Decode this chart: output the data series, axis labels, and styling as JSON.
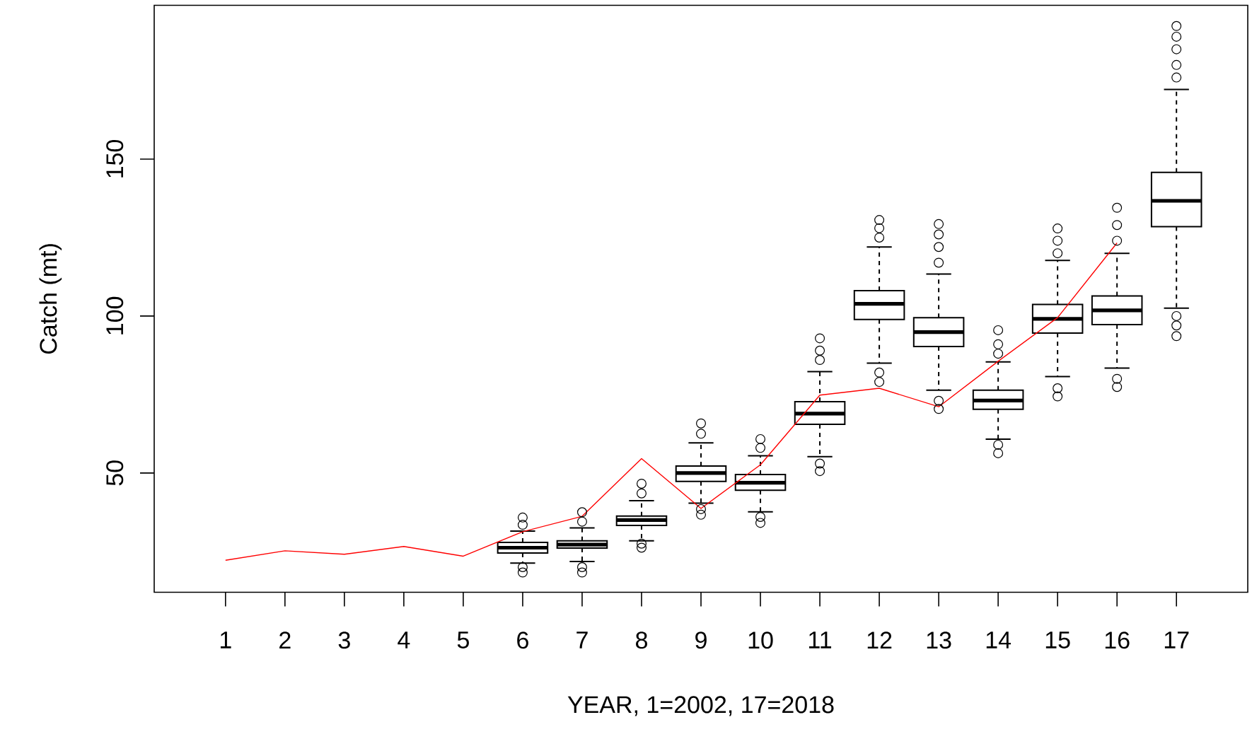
{
  "chart_data": {
    "type": "box",
    "xlabel": "YEAR, 1=2002, 17=2018",
    "ylabel": "Catch (mt)",
    "categories": [
      "1",
      "2",
      "3",
      "4",
      "5",
      "6",
      "7",
      "8",
      "9",
      "10",
      "11",
      "12",
      "13",
      "14",
      "15",
      "16",
      "17"
    ],
    "ylim": [
      12,
      199
    ],
    "yticks": [
      50,
      100,
      150
    ],
    "grid": false,
    "series": [
      {
        "color": "#000000",
        "boxes": [
          null,
          null,
          null,
          null,
          null,
          {
            "low": 21.3,
            "q1": 24.5,
            "median": 26.2,
            "q3": 27.9,
            "high": 31.5,
            "outliers": [
              18.3,
              20,
              33.5,
              35.8
            ]
          },
          {
            "low": 21.8,
            "q1": 26.1,
            "median": 27.2,
            "q3": 28.4,
            "high": 32.5,
            "outliers": [
              18.3,
              20,
              34.5,
              37.5
            ]
          },
          {
            "low": 28.4,
            "q1": 33.3,
            "median": 35,
            "q3": 36.3,
            "high": 41.2,
            "outliers": [
              26.2,
              27.5,
              43.5,
              46.6
            ]
          },
          {
            "low": 40.4,
            "q1": 47.3,
            "median": 50,
            "q3": 52.2,
            "high": 59.6,
            "outliers": [
              36.7,
              38.5,
              62.5,
              65.8
            ]
          },
          {
            "low": 37.6,
            "q1": 44.5,
            "median": 46.9,
            "q3": 49.5,
            "high": 55.5,
            "outliers": [
              34.1,
              36,
              58,
              60.8
            ]
          },
          {
            "low": 55.2,
            "q1": 65.5,
            "median": 68.9,
            "q3": 72.7,
            "high": 82.3,
            "outliers": [
              50.6,
              53,
              86,
              89,
              92.9
            ]
          },
          {
            "low": 85,
            "q1": 98.9,
            "median": 103.9,
            "q3": 108.1,
            "high": 122,
            "outliers": [
              79,
              82,
              125,
              128,
              130.6
            ]
          },
          {
            "low": 76.4,
            "q1": 90.3,
            "median": 94.9,
            "q3": 99.5,
            "high": 113.4,
            "outliers": [
              70.4,
              73,
              117,
              122,
              126,
              129.3
            ]
          },
          {
            "low": 60.8,
            "q1": 70.3,
            "median": 73.1,
            "q3": 76.4,
            "high": 85.4,
            "outliers": [
              56.3,
              59,
              88,
              91,
              95.5
            ]
          },
          {
            "low": 80.7,
            "q1": 94.6,
            "median": 99.1,
            "q3": 103.7,
            "high": 117.7,
            "outliers": [
              74.4,
              77,
              120,
              124,
              127.9
            ]
          },
          {
            "low": 83.4,
            "q1": 97.3,
            "median": 101.8,
            "q3": 106.4,
            "high": 120,
            "outliers": [
              77.4,
              80,
              124,
              129,
              134.5
            ]
          },
          {
            "low": 102.5,
            "q1": 128.5,
            "median": 136.7,
            "q3": 145.8,
            "high": 172.2,
            "outliers": [
              93.6,
              97,
              100,
              176,
              180,
              185,
              189,
              192.4
            ]
          }
        ]
      },
      {
        "type": "line",
        "color": "#ff0000",
        "values": [
          22.2,
          25.2,
          24.1,
          26.6,
          23.5,
          31.3,
          36.2,
          54.6,
          38.7,
          52.6,
          74.8,
          77,
          71.1,
          85.6,
          99.5,
          123.3,
          null
        ]
      }
    ]
  }
}
